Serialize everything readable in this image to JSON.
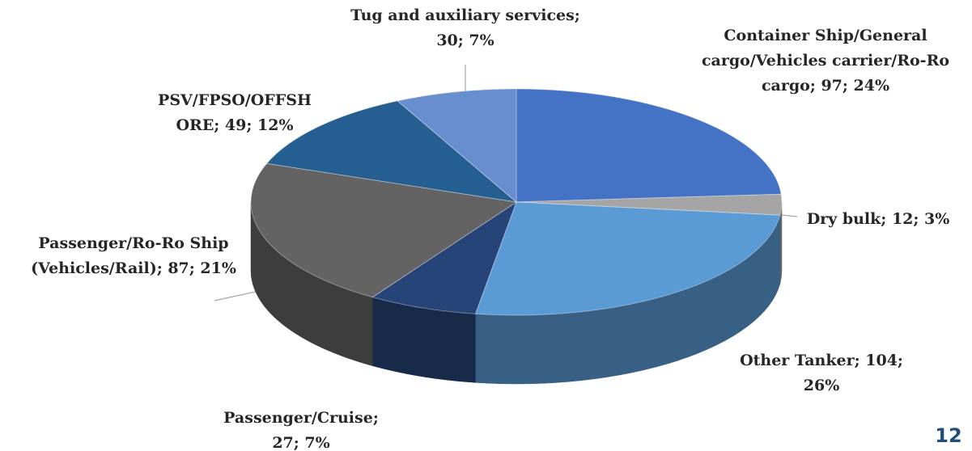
{
  "chart_data": {
    "type": "pie3d",
    "values": [
      97,
      12,
      104,
      27,
      87,
      49,
      30
    ],
    "value_labels": [
      [
        "Container Ship/General",
        "cargo/Vehicles carrier/Ro-Ro",
        "cargo; 97; 24%"
      ],
      [
        "Dry bulk; 12; 3%"
      ],
      [
        "Other Tanker; 104;",
        "26%"
      ],
      [
        "Passenger/Cruise;",
        "27; 7%"
      ],
      [
        "Passenger/Ro-Ro Ship",
        "(Vehicles/Rail); 87; 21%"
      ],
      [
        "PSV/FPSO/OFFSH",
        "ORE; 49; 12%"
      ],
      [
        "Tug and auxiliary services;",
        "30; 7%"
      ]
    ],
    "colors": [
      "#4472c4",
      "#a5a5a5",
      "#5b9bd5",
      "#264478",
      "#636363",
      "#255e91",
      "#698ed0"
    ]
  },
  "page_number": "12"
}
